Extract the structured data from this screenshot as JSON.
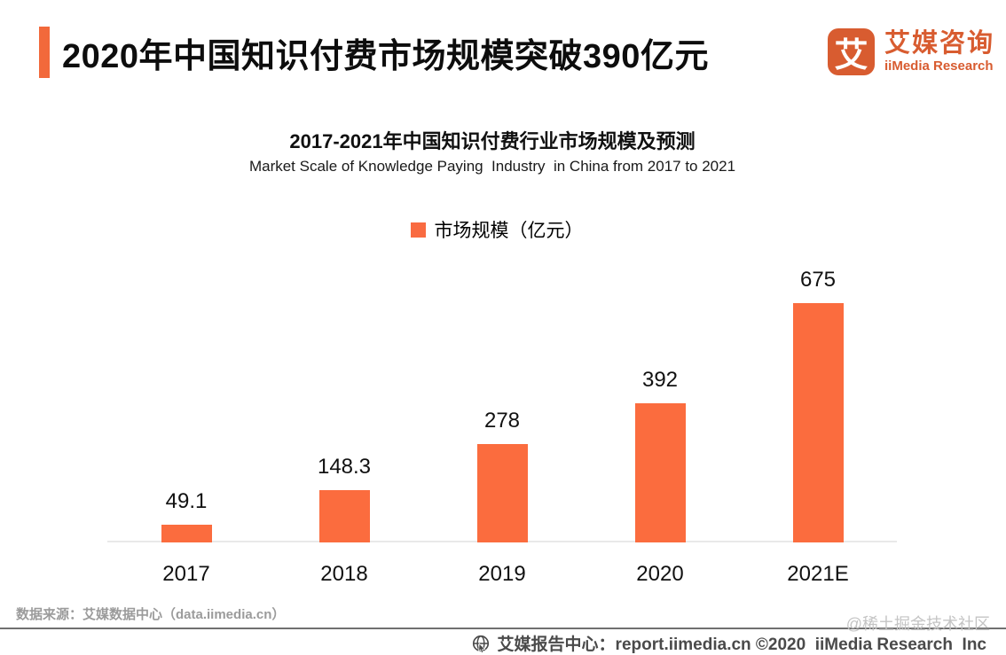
{
  "header": {
    "title": "2020年中国知识付费市场规模突破390亿元",
    "logo": {
      "glyph": "艾",
      "name_cn": "艾媒咨询",
      "name_en": "iiMedia Research"
    }
  },
  "chart": {
    "title": "2017-2021年中国知识付费行业市场规模及预测",
    "subtitle": "Market Scale of Knowledge Paying  Industry  in China from 2017 to 2021",
    "legend_label": "市场规模（亿元）"
  },
  "chart_data": {
    "type": "bar",
    "categories": [
      "2017",
      "2018",
      "2019",
      "2020",
      "2021E"
    ],
    "values": [
      49.1,
      148.3,
      278,
      392,
      675
    ],
    "title": "2017-2021年中国知识付费行业市场规模及预测",
    "subtitle": "Market Scale of Knowledge Paying Industry in China from 2017 to 2021",
    "legend": [
      "市场规模（亿元）"
    ],
    "xlabel": "",
    "ylabel": "市场规模（亿元）",
    "ylim": [
      0,
      675
    ],
    "bar_color": "#FB6C3E",
    "grid": false,
    "legend_position": "top-center"
  },
  "colors": {
    "accent": "#F2693B",
    "bar": "#FB6C3E",
    "logo": "#D85C30",
    "axis_line": "#E9E9E9"
  },
  "footer": {
    "source": "数据来源：艾媒数据中心（data.iimedia.cn）",
    "watermark": "@稀土掘金技术社区",
    "report_center": "艾媒报告中心：report.iimedia.cn ©2020  iiMedia Research  Inc"
  }
}
